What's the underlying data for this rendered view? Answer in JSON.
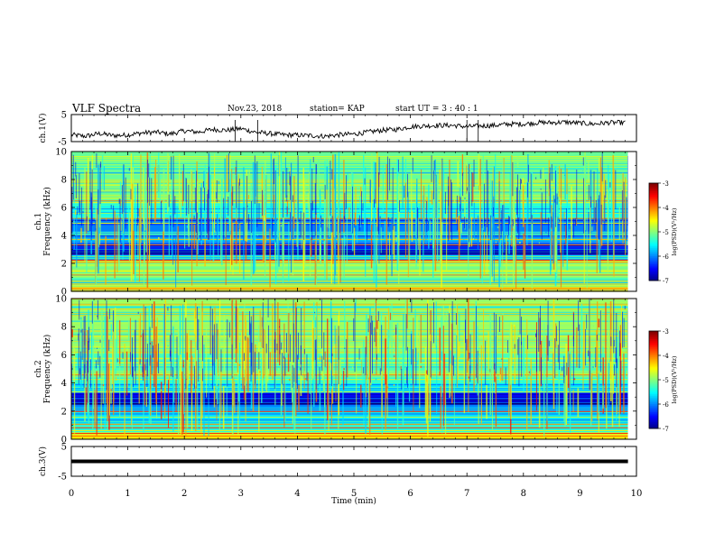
{
  "header": {
    "title": "VLF Spectra",
    "date": "Nov.23, 2018",
    "station": "station= KAP",
    "start_ut": "start  UT =   3 : 40 : 1"
  },
  "chart_data": [
    {
      "type": "line",
      "panel": "ch1-waveform",
      "ylabel": "ch.1(V)",
      "ylim": [
        -5,
        5
      ],
      "yticks": [
        "5",
        "-5"
      ],
      "x": [
        0,
        0.25,
        0.5,
        0.75,
        1.0,
        1.25,
        1.5,
        1.75,
        2.0,
        2.25,
        2.5,
        2.75,
        3.0,
        3.25,
        3.5,
        3.75,
        4.0,
        4.25,
        4.5,
        4.75,
        5.0,
        5.25,
        5.5,
        5.75,
        6.0,
        6.25,
        6.5,
        6.75,
        7.0,
        7.25,
        7.5,
        7.75,
        8.0,
        8.25,
        8.5,
        8.75,
        9.0,
        9.25,
        9.5,
        9.8
      ],
      "y": [
        -2.5,
        -3.0,
        -2.0,
        -2.8,
        -2.5,
        -1.8,
        -1.5,
        -2.2,
        -1.0,
        -1.5,
        -0.5,
        -0.8,
        -0.2,
        -1.5,
        -2.0,
        -2.5,
        -2.6,
        -2.8,
        -3.0,
        -2.5,
        -2.2,
        -1.5,
        -0.8,
        -0.5,
        0.5,
        0.8,
        1.0,
        1.0,
        0.5,
        0.8,
        1.0,
        1.5,
        1.5,
        2.0,
        2.0,
        2.2,
        1.8,
        1.5,
        2.0,
        2.0
      ]
    },
    {
      "type": "heatmap",
      "panel": "ch1-spectrogram",
      "ylabel": "ch.1\nFrequency (kHz)",
      "ylim": [
        0,
        10
      ],
      "yticks": [
        "0",
        "2",
        "4",
        "6",
        "8",
        "10"
      ],
      "colorbar": {
        "label": "log(PSD)(V²/Hz)",
        "ticks": [
          "-3",
          "-4",
          "-5",
          "-6",
          "-7"
        ],
        "range": [
          -7,
          -3
        ]
      },
      "bands": [
        {
          "from": 0.0,
          "to": 0.3,
          "level": -4.2
        },
        {
          "from": 0.3,
          "to": 1.0,
          "level": -5.2
        },
        {
          "from": 1.0,
          "to": 2.2,
          "level": -4.8
        },
        {
          "from": 2.2,
          "to": 2.6,
          "level": -5.6
        },
        {
          "from": 2.6,
          "to": 3.0,
          "level": -6.8
        },
        {
          "from": 3.0,
          "to": 3.5,
          "level": -6.4
        },
        {
          "from": 3.5,
          "to": 4.3,
          "level": -5.8
        },
        {
          "from": 4.3,
          "to": 5.3,
          "level": -6.0
        },
        {
          "from": 5.3,
          "to": 6.3,
          "level": -5.4
        },
        {
          "from": 6.3,
          "to": 10.0,
          "level": -5.1
        }
      ]
    },
    {
      "type": "heatmap",
      "panel": "ch2-spectrogram",
      "ylabel": "ch.2\nFrequency (kHz)",
      "ylim": [
        0,
        10
      ],
      "yticks": [
        "0",
        "2",
        "4",
        "6",
        "8",
        "10"
      ],
      "colorbar": {
        "label": "log(PSD)(V²/Hz)",
        "ticks": [
          "-3",
          "-4",
          "-5",
          "-6",
          "-7"
        ],
        "range": [
          -7,
          -3
        ]
      },
      "bands": [
        {
          "from": 0.0,
          "to": 0.5,
          "level": -4.4
        },
        {
          "from": 0.5,
          "to": 1.0,
          "level": -5.4
        },
        {
          "from": 1.0,
          "to": 2.0,
          "level": -5.6
        },
        {
          "from": 2.0,
          "to": 2.5,
          "level": -6.0
        },
        {
          "from": 2.5,
          "to": 3.3,
          "level": -6.6
        },
        {
          "from": 3.3,
          "to": 4.0,
          "level": -5.6
        },
        {
          "from": 4.0,
          "to": 6.0,
          "level": -5.2
        },
        {
          "from": 6.0,
          "to": 10.0,
          "level": -4.9
        }
      ]
    },
    {
      "type": "line",
      "panel": "ch3-waveform",
      "ylabel": "ch.3(V)",
      "ylim": [
        -5,
        5
      ],
      "yticks": [
        "5",
        "-5"
      ],
      "x": [
        0,
        9.85
      ],
      "y": [
        0,
        0
      ]
    }
  ],
  "xaxis": {
    "label": "Time  (min)",
    "range": [
      0,
      10
    ],
    "ticks": [
      "0",
      "1",
      "2",
      "3",
      "4",
      "5",
      "6",
      "7",
      "8",
      "9",
      "10"
    ]
  }
}
